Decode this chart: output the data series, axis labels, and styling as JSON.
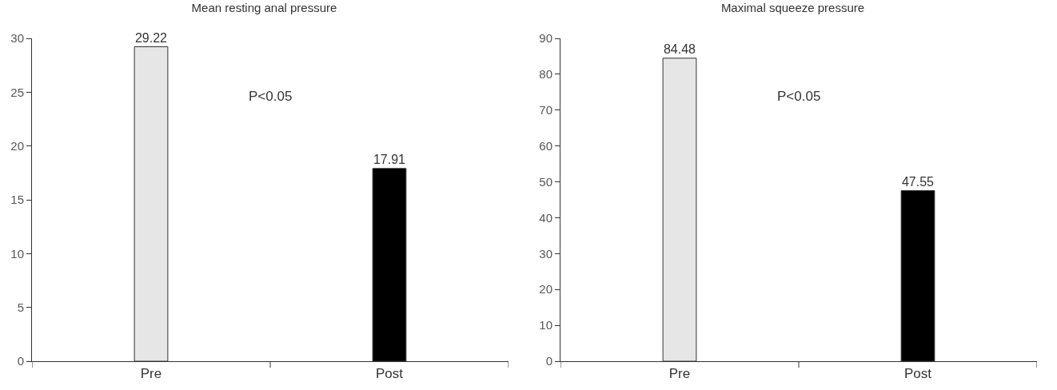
{
  "chart_data": [
    {
      "type": "bar",
      "title": "Mean resting anal pressure",
      "categories": [
        "Pre",
        "Post"
      ],
      "values": [
        29.22,
        17.91
      ],
      "colors": [
        "#e6e6e6",
        "#000000"
      ],
      "ylim": [
        0,
        30
      ],
      "yticks": [
        0,
        5,
        10,
        15,
        20,
        25,
        30
      ],
      "data_labels": true,
      "annotations": [
        "P<0.05"
      ]
    },
    {
      "type": "bar",
      "title": "Maximal squeeze pressure",
      "categories": [
        "Pre",
        "Post"
      ],
      "values": [
        84.48,
        47.55
      ],
      "colors": [
        "#e6e6e6",
        "#000000"
      ],
      "ylim": [
        0,
        90
      ],
      "yticks": [
        0,
        10,
        20,
        30,
        40,
        50,
        60,
        70,
        80,
        90
      ],
      "data_labels": true,
      "annotations": [
        "P<0.05"
      ]
    }
  ]
}
